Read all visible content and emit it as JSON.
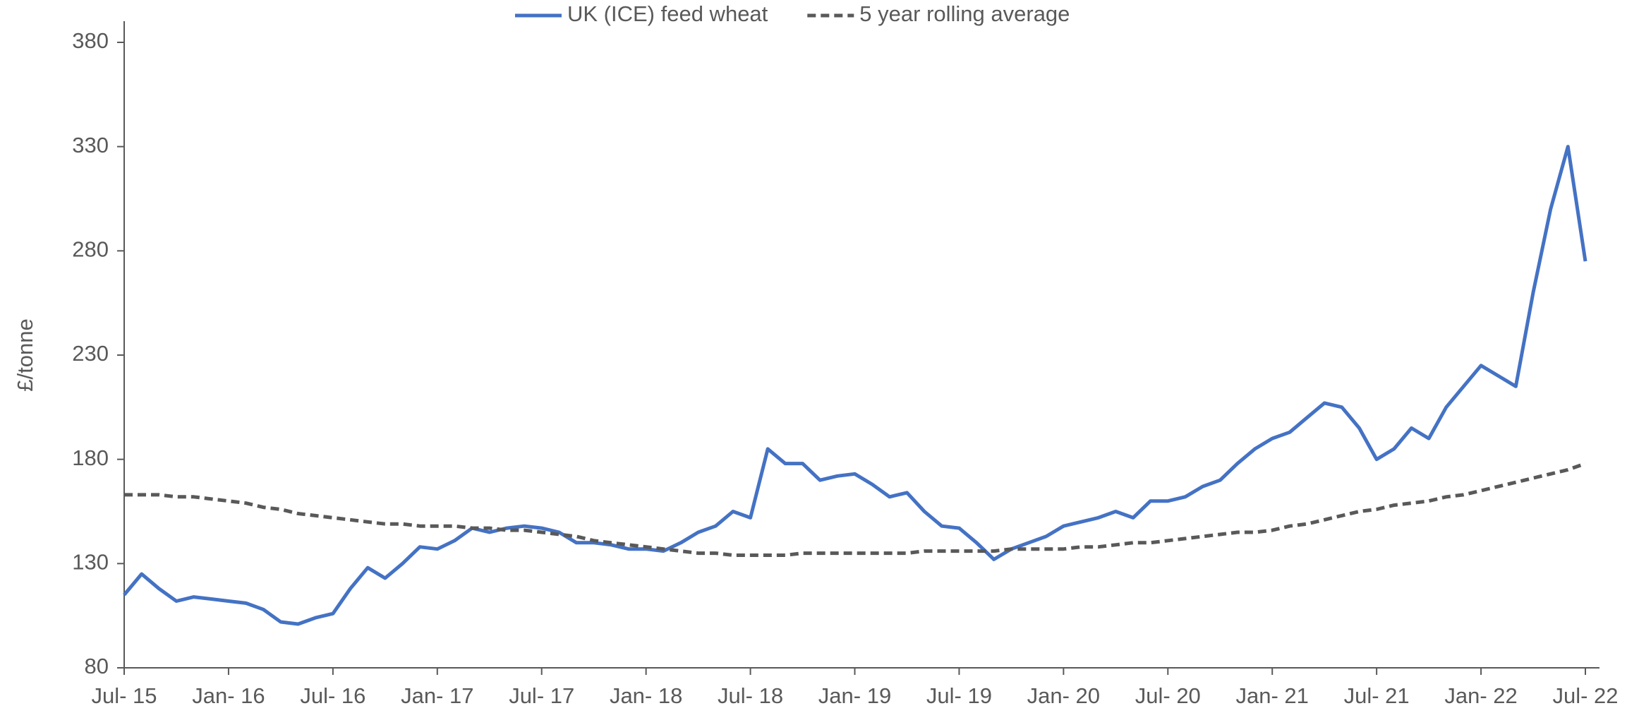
{
  "chart_data": {
    "type": "line",
    "y_label": "£/tonne",
    "x": [
      "Jul- 15",
      null,
      null,
      null,
      null,
      null,
      "Jan- 16",
      null,
      null,
      null,
      null,
      null,
      "Jul- 16",
      null,
      null,
      null,
      null,
      null,
      "Jan- 17",
      null,
      null,
      null,
      null,
      null,
      "Jul- 17",
      null,
      null,
      null,
      null,
      null,
      "Jan- 18",
      null,
      null,
      null,
      null,
      null,
      "Jul- 18",
      null,
      null,
      null,
      null,
      null,
      "Jan- 19",
      null,
      null,
      null,
      null,
      null,
      "Jul- 19",
      null,
      null,
      null,
      null,
      null,
      "Jan- 20",
      null,
      null,
      null,
      null,
      null,
      "Jul- 20",
      null,
      null,
      null,
      null,
      null,
      "Jan- 21",
      null,
      null,
      null,
      null,
      null,
      "Jul- 21",
      null,
      null,
      null,
      null,
      null,
      "Jan- 22",
      null,
      null,
      null,
      null,
      null,
      "Jul- 22"
    ],
    "series": [
      {
        "name": "UK (ICE) feed wheat",
        "color": "#4472c4",
        "dashed": false,
        "values": [
          115,
          125,
          118,
          112,
          114,
          113,
          112,
          111,
          108,
          102,
          101,
          104,
          106,
          118,
          128,
          123,
          130,
          138,
          137,
          141,
          147,
          145,
          147,
          148,
          147,
          145,
          140,
          140,
          139,
          137,
          137,
          136,
          140,
          145,
          148,
          155,
          152,
          185,
          178,
          178,
          170,
          172,
          173,
          168,
          162,
          164,
          155,
          148,
          147,
          140,
          132,
          137,
          140,
          143,
          148,
          150,
          152,
          155,
          152,
          160,
          160,
          162,
          167,
          170,
          178,
          185,
          190,
          193,
          200,
          207,
          205,
          195,
          180,
          185,
          195,
          190,
          205,
          215,
          225,
          220,
          215,
          260,
          300,
          330,
          275
        ]
      },
      {
        "name": "5 year rolling average",
        "color": "#595959",
        "dashed": true,
        "values": [
          163,
          163,
          163,
          162,
          162,
          161,
          160,
          159,
          157,
          156,
          154,
          153,
          152,
          151,
          150,
          149,
          149,
          148,
          148,
          148,
          147,
          147,
          146,
          146,
          145,
          144,
          143,
          141,
          140,
          139,
          138,
          137,
          136,
          135,
          135,
          134,
          134,
          134,
          134,
          135,
          135,
          135,
          135,
          135,
          135,
          135,
          136,
          136,
          136,
          136,
          136,
          137,
          137,
          137,
          137,
          138,
          138,
          139,
          140,
          140,
          141,
          142,
          143,
          144,
          145,
          145,
          146,
          148,
          149,
          151,
          153,
          155,
          156,
          158,
          159,
          160,
          162,
          163,
          165,
          167,
          169,
          171,
          173,
          175,
          178
        ]
      }
    ],
    "ylim": [
      80,
      380
    ],
    "yticks": [
      80,
      130,
      180,
      230,
      280,
      330,
      380
    ],
    "legend": "top"
  }
}
